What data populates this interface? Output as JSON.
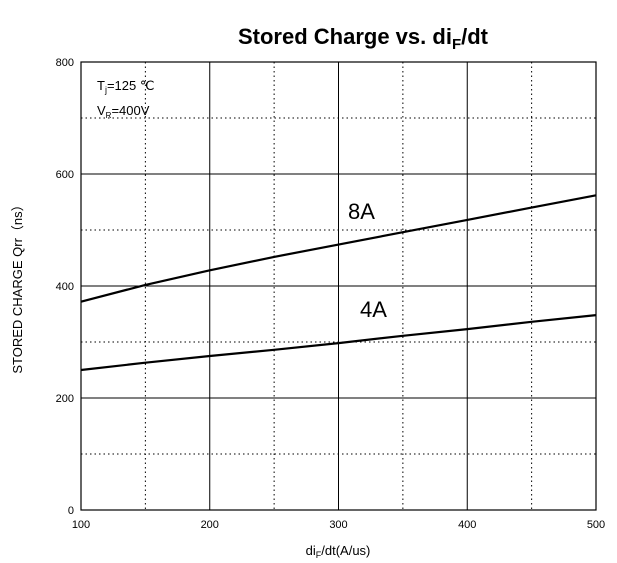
{
  "chart_data": {
    "type": "line",
    "title": {
      "main": "Stored Charge vs. di",
      "sub": "F",
      "end": "/dt"
    },
    "xlabel": {
      "main": "di",
      "sub": "F",
      "end": "/dt(A/us)"
    },
    "ylabel": "STORED CHARGE  Qrr（ns）",
    "xlim": [
      100,
      500
    ],
    "ylim": [
      0,
      800
    ],
    "x_ticks": [
      "100",
      "200",
      "300",
      "400",
      "500"
    ],
    "y_ticks": [
      "0",
      "200",
      "400",
      "600",
      "800"
    ],
    "grid": true,
    "conditions": {
      "tj": {
        "main": "T",
        "sub": "j",
        "end": "=125 ℃"
      },
      "vr": {
        "main": "V",
        "sub": "R",
        "end": "=400V"
      }
    },
    "series": [
      {
        "name": "8A",
        "x": [
          100,
          150,
          200,
          250,
          300,
          350,
          400,
          450,
          500
        ],
        "y": [
          372,
          402,
          428,
          452,
          474,
          496,
          518,
          540,
          562
        ]
      },
      {
        "name": "4A",
        "x": [
          100,
          150,
          200,
          250,
          300,
          350,
          400,
          450,
          500
        ],
        "y": [
          250,
          263,
          275,
          286,
          298,
          311,
          323,
          336,
          348
        ]
      }
    ]
  }
}
